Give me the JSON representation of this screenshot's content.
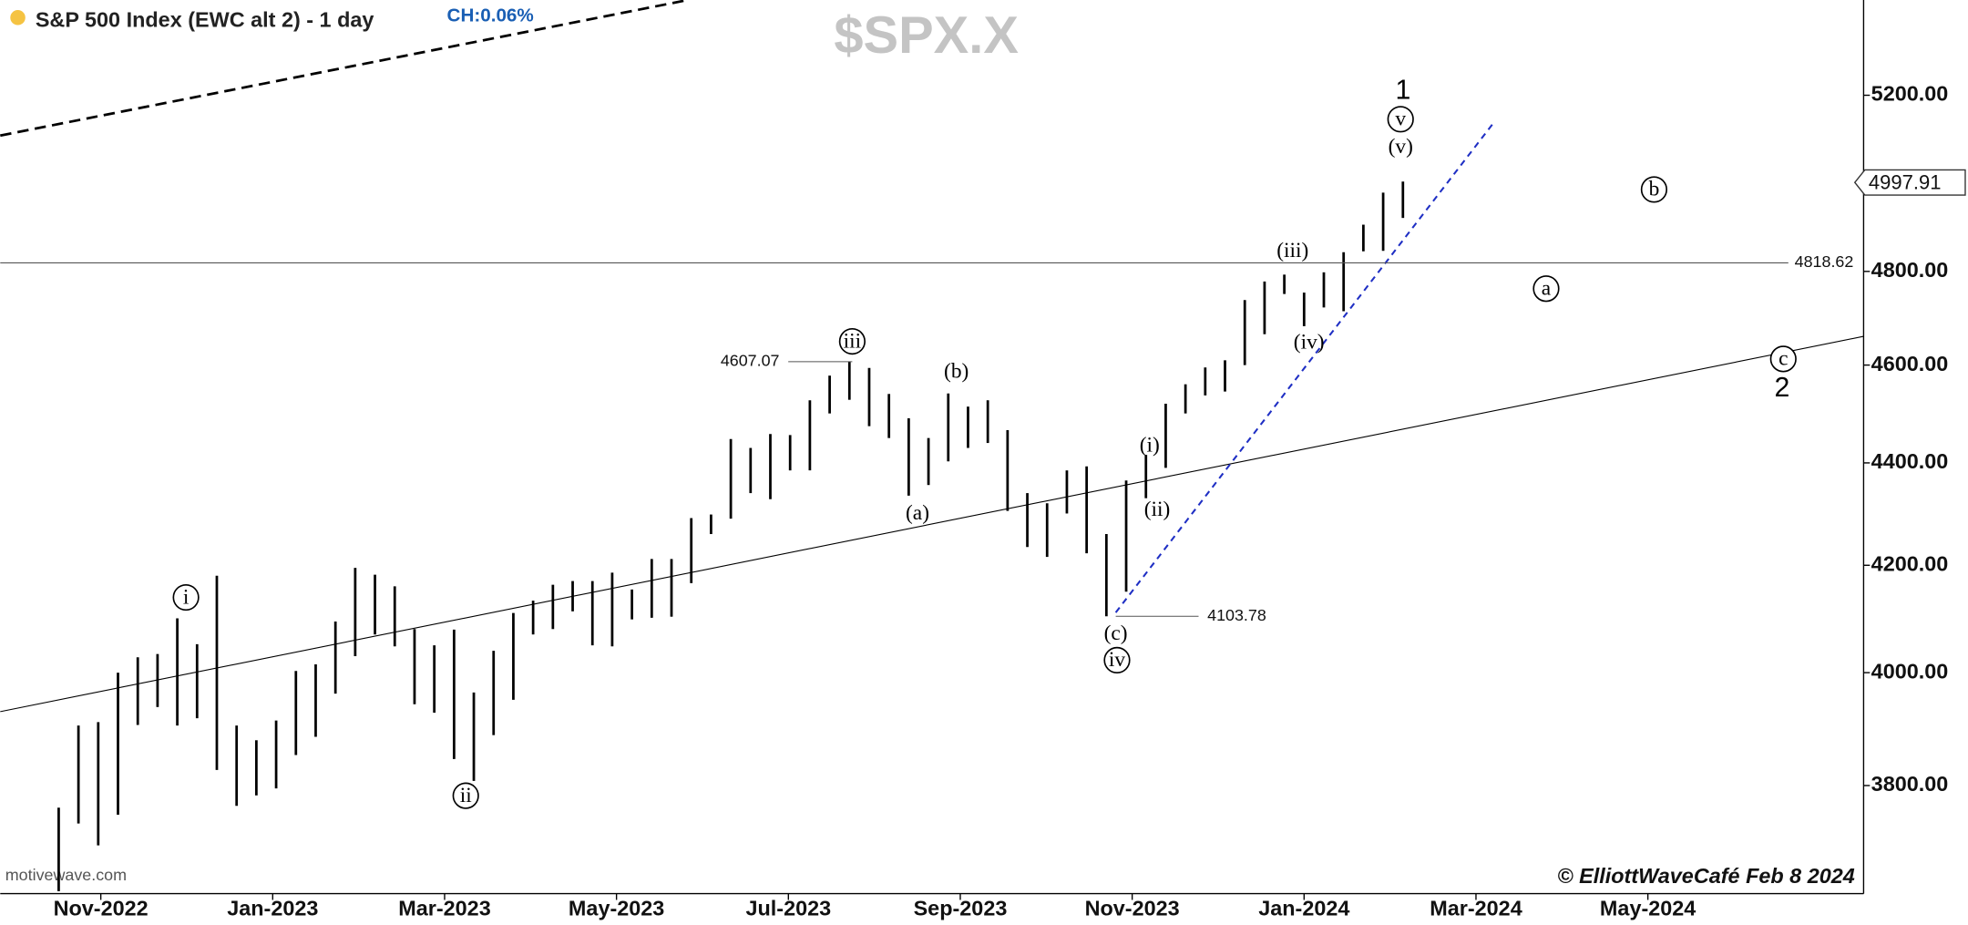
{
  "chart_data": {
    "type": "ohlc",
    "title": "S&P 500 Index (EWC alt 2) - 1 day",
    "change": "CH:0.06%",
    "watermark": "$SPX.X",
    "source": "motivewave.com",
    "credit": "© ElliottWaveCafé Feb 8 2024",
    "x": [
      -0.49,
      -0.26,
      -0.03,
      0.2,
      0.43,
      0.66,
      0.89,
      1.12,
      1.35,
      1.58,
      1.81,
      2.04,
      2.27,
      2.5,
      2.73,
      2.96,
      3.19,
      3.42,
      3.65,
      3.88,
      4.11,
      4.34,
      4.57,
      4.8,
      5.03,
      5.26,
      5.49,
      5.72,
      5.95,
      6.18,
      6.41,
      6.64,
      6.87,
      7.1,
      7.33,
      7.56,
      7.79,
      8.02,
      8.25,
      8.48,
      8.71,
      8.94,
      9.17,
      9.4,
      9.63,
      9.86,
      10.09,
      10.32,
      10.55,
      10.78,
      11.01,
      11.24,
      11.47,
      11.7,
      11.93,
      12.16,
      12.39,
      12.62,
      12.85,
      13.08,
      13.31,
      13.54,
      13.77,
      14.0,
      14.23,
      14.46,
      14.69,
      14.92,
      15.15
    ],
    "high": [
      3762,
      3905,
      3911,
      4000,
      4028,
      4034,
      4100,
      4052,
      4180,
      3905,
      3879,
      3914,
      4003,
      4015,
      4094,
      4195,
      4182,
      4160,
      4080,
      4050,
      4079,
      3964,
      4040,
      4110,
      4133,
      4163,
      4170,
      4170,
      4186,
      4154,
      4212,
      4212,
      4291,
      4298,
      4448,
      4430,
      4458,
      4456,
      4527,
      4578,
      4607.07,
      4594,
      4540,
      4490,
      4450,
      4541,
      4514,
      4527,
      4466,
      4340,
      4320,
      4385,
      4393,
      4260,
      4365,
      4416,
      4520,
      4560,
      4595,
      4610,
      4738,
      4778,
      4793,
      4754,
      4798,
      4842,
      4903,
      4975,
      5000
    ],
    "low": [
      3590,
      3735,
      3698,
      3750,
      3906,
      3938,
      3905,
      3918,
      3827,
      3765,
      3783,
      3795,
      3853,
      3885,
      3962,
      4030,
      4070,
      4048,
      3943,
      3928,
      3846,
      3808,
      3888,
      3951,
      4070,
      4080,
      4113,
      4050,
      4048,
      4098,
      4101,
      4103,
      4166,
      4260,
      4290,
      4340,
      4328,
      4385,
      4385,
      4500,
      4528,
      4474,
      4450,
      4335,
      4356,
      4403,
      4430,
      4440,
      4305,
      4235,
      4216,
      4300,
      4223,
      4103.78,
      4150,
      4330,
      4390,
      4500,
      4537,
      4545,
      4600,
      4665,
      4751,
      4682,
      4722,
      4714,
      4844,
      4845,
      4918
    ],
    "color": "#000000",
    "xlim": [
      -1.17,
      20.51
    ],
    "xticks": [
      {
        "value": 0,
        "label": "Nov-2022"
      },
      {
        "value": 2,
        "label": "Jan-2023"
      },
      {
        "value": 4,
        "label": "Mar-2023"
      },
      {
        "value": 6,
        "label": "May-2023"
      },
      {
        "value": 8,
        "label": "Jul-2023"
      },
      {
        "value": 10,
        "label": "Sep-2023"
      },
      {
        "value": 12,
        "label": "Nov-2023"
      },
      {
        "value": 14,
        "label": "Jan-2024"
      },
      {
        "value": 16,
        "label": "Mar-2024"
      },
      {
        "value": 18,
        "label": "May-2024"
      }
    ],
    "ylim": [
      3622,
      5430
    ],
    "yscale": "log",
    "yticks": [
      {
        "value": 3800,
        "label": "3800.00"
      },
      {
        "value": 4000,
        "label": "4000.00"
      },
      {
        "value": 4200,
        "label": "4200.00"
      },
      {
        "value": 4400,
        "label": "4400.00"
      },
      {
        "value": 4600,
        "label": "4600.00"
      },
      {
        "value": 4800,
        "label": "4800.00"
      },
      {
        "value": 5200,
        "label": "5200.00"
      }
    ],
    "level_labels": [
      4607.07,
      4103.78
    ],
    "horizontal_line": 4818.62,
    "last_price": 4997.91,
    "wave_labels": [
      "i",
      "ii",
      "iii",
      "(a)",
      "(b)",
      "(c)",
      "iv",
      "(i)",
      "(ii)",
      "(iii)",
      "(iv)",
      "(v)",
      "v",
      "1",
      "a",
      "b",
      "c",
      "2"
    ]
  }
}
